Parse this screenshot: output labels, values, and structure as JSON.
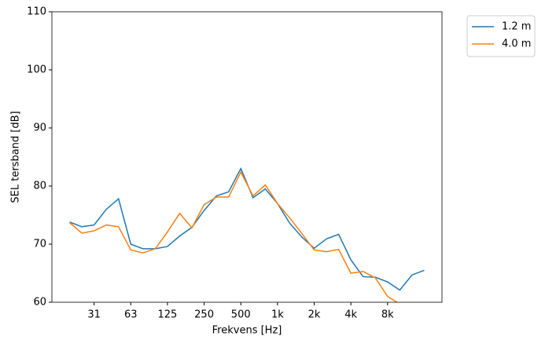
{
  "chart_data": {
    "type": "line",
    "x_label": "Frekvens [Hz]",
    "y_label": "SEL tersband [dB]",
    "categories": [
      null,
      null,
      "31",
      null,
      null,
      "63",
      null,
      null,
      "125",
      null,
      null,
      "250",
      null,
      null,
      "500",
      null,
      null,
      "1k",
      null,
      null,
      "2k",
      null,
      null,
      "4k",
      null,
      null,
      "8k",
      null,
      null,
      null
    ],
    "series": [
      {
        "name": "1.2 m",
        "color": "#1f77b4",
        "values": [
          73.8,
          73.0,
          73.3,
          76.0,
          77.8,
          70.0,
          69.2,
          69.2,
          69.6,
          71.4,
          72.9,
          75.8,
          78.3,
          79.0,
          83.0,
          78.0,
          79.5,
          77.0,
          73.6,
          71.2,
          69.3,
          70.9,
          71.7,
          67.3,
          64.4,
          64.3,
          63.5,
          62.1,
          64.7,
          65.5
        ]
      },
      {
        "name": "4.0 m",
        "color": "#ff7f0e",
        "values": [
          73.7,
          71.9,
          72.3,
          73.3,
          73.0,
          69.0,
          68.5,
          69.2,
          72.1,
          75.3,
          72.8,
          76.8,
          78.1,
          78.1,
          82.4,
          78.3,
          80.2,
          77.0,
          74.5,
          71.8,
          69.0,
          68.7,
          69.1,
          65.0,
          65.3,
          64.2,
          61.0,
          59.7,
          null,
          null
        ]
      }
    ],
    "ylim": [
      60,
      110
    ],
    "yticks": [
      60,
      70,
      80,
      90,
      100,
      110
    ],
    "legend": "outside-upper-right"
  }
}
